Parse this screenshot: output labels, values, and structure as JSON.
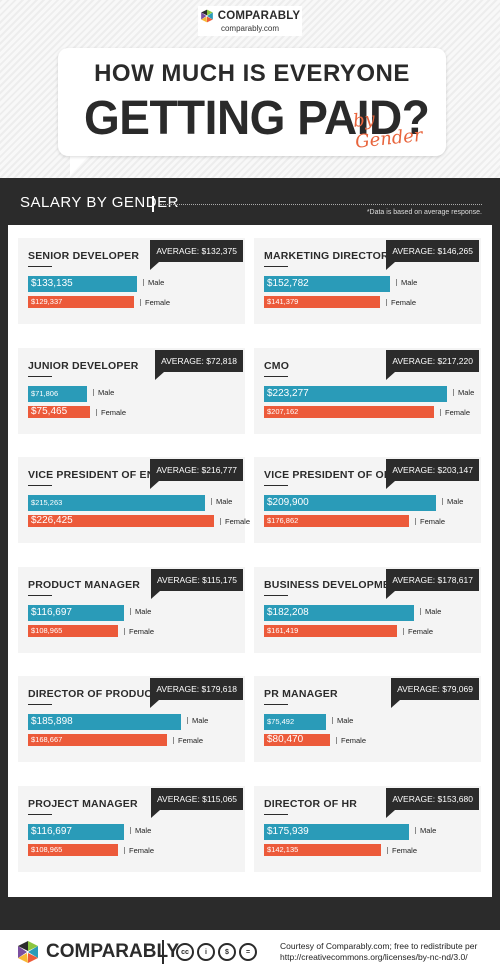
{
  "header": {
    "logo_name": "COMPARABLY",
    "logo_url": "comparably.com",
    "title_line1": "HOW MUCH IS EVERYONE",
    "title_line2": "GETTING PAID?",
    "title_suffix": "by Gender"
  },
  "section": {
    "title": "SALARY BY GENDER",
    "note": "*Data is based on average response."
  },
  "colors": {
    "male": "#2a9bb8",
    "female": "#ec5a3a",
    "dark": "#2b2b2b"
  },
  "chart_data": {
    "type": "bar",
    "series_names": [
      "Male",
      "Female"
    ],
    "groups": [
      {
        "title": "SENIOR DEVELOPER",
        "average": "AVERAGE: $132,375",
        "male": 133135,
        "male_label": "$133,135",
        "female": 129337,
        "female_label": "$129,337"
      },
      {
        "title": "MARKETING DIRECTOR",
        "average": "AVERAGE: $146,265",
        "male": 152782,
        "male_label": "$152,782",
        "female": 141379,
        "female_label": "$141,379"
      },
      {
        "title": "JUNIOR DEVELOPER",
        "average": "AVERAGE: $72,818",
        "male": 71806,
        "male_label": "$71,806",
        "female": 75465,
        "female_label": "$75,465"
      },
      {
        "title": "CMO",
        "average": "AVERAGE: $217,220",
        "male": 223277,
        "male_label": "$223,277",
        "female": 207162,
        "female_label": "$207,162"
      },
      {
        "title": "VICE PRESIDENT OF ENGINEERING",
        "average": "AVERAGE: $216,777",
        "male": 215263,
        "male_label": "$215,263",
        "female": 226425,
        "female_label": "$226,425"
      },
      {
        "title": "VICE PRESIDENT OF OPERATIONS",
        "average": "AVERAGE: $203,147",
        "male": 209900,
        "male_label": "$209,900",
        "female": 176862,
        "female_label": "$176,862"
      },
      {
        "title": "PRODUCT MANAGER",
        "average": "AVERAGE: $115,175",
        "male": 116697,
        "male_label": "$116,697",
        "female": 108965,
        "female_label": "$108,965"
      },
      {
        "title": "BUSINESS DEVELOPMENT DIRECTOR",
        "average": "AVERAGE: $178,617",
        "male": 182208,
        "male_label": "$182,208",
        "female": 161419,
        "female_label": "$161,419"
      },
      {
        "title": "DIRECTOR OF PRODUCT",
        "average": "AVERAGE: $179,618",
        "male": 185898,
        "male_label": "$185,898",
        "female": 168667,
        "female_label": "$168,667"
      },
      {
        "title": "PR MANAGER",
        "average": "AVERAGE: $79,069",
        "male": 75492,
        "male_label": "$75,492",
        "female": 80470,
        "female_label": "$80,470"
      },
      {
        "title": "PROJECT MANAGER",
        "average": "AVERAGE: $115,065",
        "male": 116697,
        "male_label": "$116,697",
        "female": 108965,
        "female_label": "$108,965"
      },
      {
        "title": "DIRECTOR OF HR",
        "average": "AVERAGE: $153,680",
        "male": 175939,
        "male_label": "$175,939",
        "female": 142135,
        "female_label": "$142,135"
      }
    ]
  },
  "footer": {
    "logo_name": "COMPARABLY",
    "cc_icons": [
      "cc-icon",
      "by-icon",
      "nc-icon",
      "nd-icon"
    ],
    "cc_glyphs": [
      "cc",
      "i",
      "$",
      "="
    ],
    "credit": "Courtesy of Comparably.com; free to redistribute per http://creativecommons.org/licenses/by-nc-nd/3.0/"
  }
}
